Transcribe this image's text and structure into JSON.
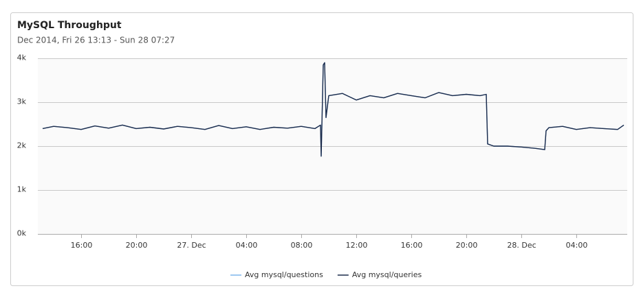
{
  "chart_data": {
    "type": "line",
    "title": "MySQL Throughput",
    "subtitle": "Dec 2014, Fri 26 13:13 - Sun 28 07:27",
    "x": [
      13.2,
      14,
      15,
      16,
      17,
      18,
      19,
      20,
      21,
      22,
      23,
      24,
      25,
      26,
      27,
      28,
      29,
      30,
      31,
      32,
      33,
      33.4,
      33.45,
      33.6,
      33.7,
      33.8,
      34,
      35,
      36,
      37,
      38,
      39,
      40,
      41,
      42,
      43,
      44,
      45,
      45.45,
      45.55,
      46,
      47,
      48,
      49,
      49.7,
      49.8,
      50,
      51,
      52,
      53,
      54,
      55,
      55.45
    ],
    "series": [
      {
        "name": "Avg mysql/questions",
        "color": "#7cb5ec",
        "values": [
          2400,
          2450,
          2420,
          2380,
          2460,
          2410,
          2480,
          2400,
          2430,
          2390,
          2450,
          2420,
          2380,
          2470,
          2400,
          2440,
          2380,
          2430,
          2410,
          2450,
          2400,
          2480,
          1770,
          3850,
          3900,
          2650,
          3150,
          3200,
          3050,
          3150,
          3100,
          3200,
          3150,
          3100,
          3220,
          3150,
          3180,
          3150,
          3180,
          2050,
          2000,
          2000,
          1980,
          1950,
          1920,
          2350,
          2420,
          2450,
          2380,
          2420,
          2400,
          2380,
          2480
        ]
      },
      {
        "name": "Avg mysql/queries",
        "color": "#1c2b4a",
        "values": [
          2400,
          2450,
          2420,
          2380,
          2460,
          2410,
          2480,
          2400,
          2430,
          2390,
          2450,
          2420,
          2380,
          2470,
          2400,
          2440,
          2380,
          2430,
          2410,
          2450,
          2400,
          2480,
          1770,
          3850,
          3900,
          2650,
          3150,
          3200,
          3050,
          3150,
          3100,
          3200,
          3150,
          3100,
          3220,
          3150,
          3180,
          3150,
          3180,
          2050,
          2000,
          2000,
          1980,
          1950,
          1920,
          2350,
          2420,
          2450,
          2380,
          2420,
          2400,
          2380,
          2480
        ]
      }
    ],
    "xlim": [
      12.85,
      55.7
    ],
    "xticks": [
      {
        "value": 16,
        "label": "16:00"
      },
      {
        "value": 20,
        "label": "20:00"
      },
      {
        "value": 24,
        "label": "27. Dec"
      },
      {
        "value": 28,
        "label": "04:00"
      },
      {
        "value": 32,
        "label": "08:00"
      },
      {
        "value": 36,
        "label": "12:00"
      },
      {
        "value": 40,
        "label": "16:00"
      },
      {
        "value": 44,
        "label": "20:00"
      },
      {
        "value": 48,
        "label": "28. Dec"
      },
      {
        "value": 52,
        "label": "04:00"
      }
    ],
    "ylim": [
      0,
      4000
    ],
    "yticks": [
      {
        "value": 0,
        "label": "0k"
      },
      {
        "value": 1000,
        "label": "1k"
      },
      {
        "value": 2000,
        "label": "2k"
      },
      {
        "value": 3000,
        "label": "3k"
      },
      {
        "value": 4000,
        "label": "4k"
      }
    ],
    "grid": true
  }
}
